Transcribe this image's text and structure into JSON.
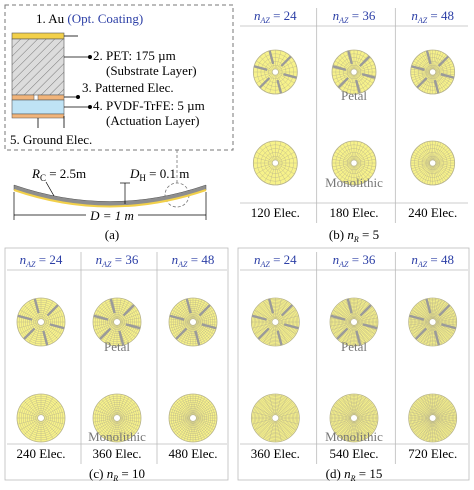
{
  "colors": {
    "disc_fill": "#f7f28a",
    "disc_line": "#b7b38c",
    "petal_cut": "#9a9a9a",
    "annotation_blue": "#2c3fa6",
    "label_gray": "#777777",
    "au_layer": "#f2d04a",
    "pvdf_layer": "#bfe3f5",
    "electrode": "#f1b47a"
  },
  "panel_a": {
    "layers": [
      {
        "num": "1. Au",
        "desc": "(Opt. Coating)"
      },
      {
        "num": "2. PET: 175 µm",
        "desc": "(Substrate Layer)"
      },
      {
        "num": "3. Patterned Elec.",
        "desc": ""
      },
      {
        "num": "4. PVDF-TrFE: 5 µm",
        "desc": "(Actuation Layer)"
      },
      {
        "num": "5. Ground Elec.",
        "desc": ""
      }
    ],
    "rc_sym": "R",
    "rc_sub": "C",
    "rc_val": " = 2.5m",
    "dh_sym": "D",
    "dh_sub": "H",
    "dh_val": " = 0.1 m",
    "d_label": "D = 1 m",
    "caption": "(a)"
  },
  "panels": [
    {
      "id": "b",
      "nr": "5",
      "naz": [
        "24",
        "36",
        "48"
      ],
      "rings": 5,
      "petal_label": "Petal",
      "mono_label": "Monolithic",
      "elec": [
        "120 Elec.",
        "180 Elec.",
        "240 Elec."
      ],
      "caption_pre": "(b)",
      "caption_sym": "n",
      "caption_sub": "R",
      "caption_eq": " = 5"
    },
    {
      "id": "c",
      "nr": "10",
      "naz": [
        "24",
        "36",
        "48"
      ],
      "rings": 10,
      "petal_label": "Petal",
      "mono_label": "Monolithic",
      "elec": [
        "240 Elec.",
        "360 Elec.",
        "480 Elec."
      ],
      "caption_pre": "(c)",
      "caption_sym": "n",
      "caption_sub": "R",
      "caption_eq": " = 10"
    },
    {
      "id": "d",
      "nr": "15",
      "naz": [
        "24",
        "36",
        "48"
      ],
      "rings": 15,
      "petal_label": "Petal",
      "mono_label": "Monolithic",
      "elec": [
        "360 Elec.",
        "540 Elec.",
        "720 Elec."
      ],
      "caption_pre": "(d)",
      "caption_sym": "n",
      "caption_sub": "R",
      "caption_eq": " = 15"
    }
  ],
  "naz_sym": "n",
  "naz_sub": "AZ"
}
